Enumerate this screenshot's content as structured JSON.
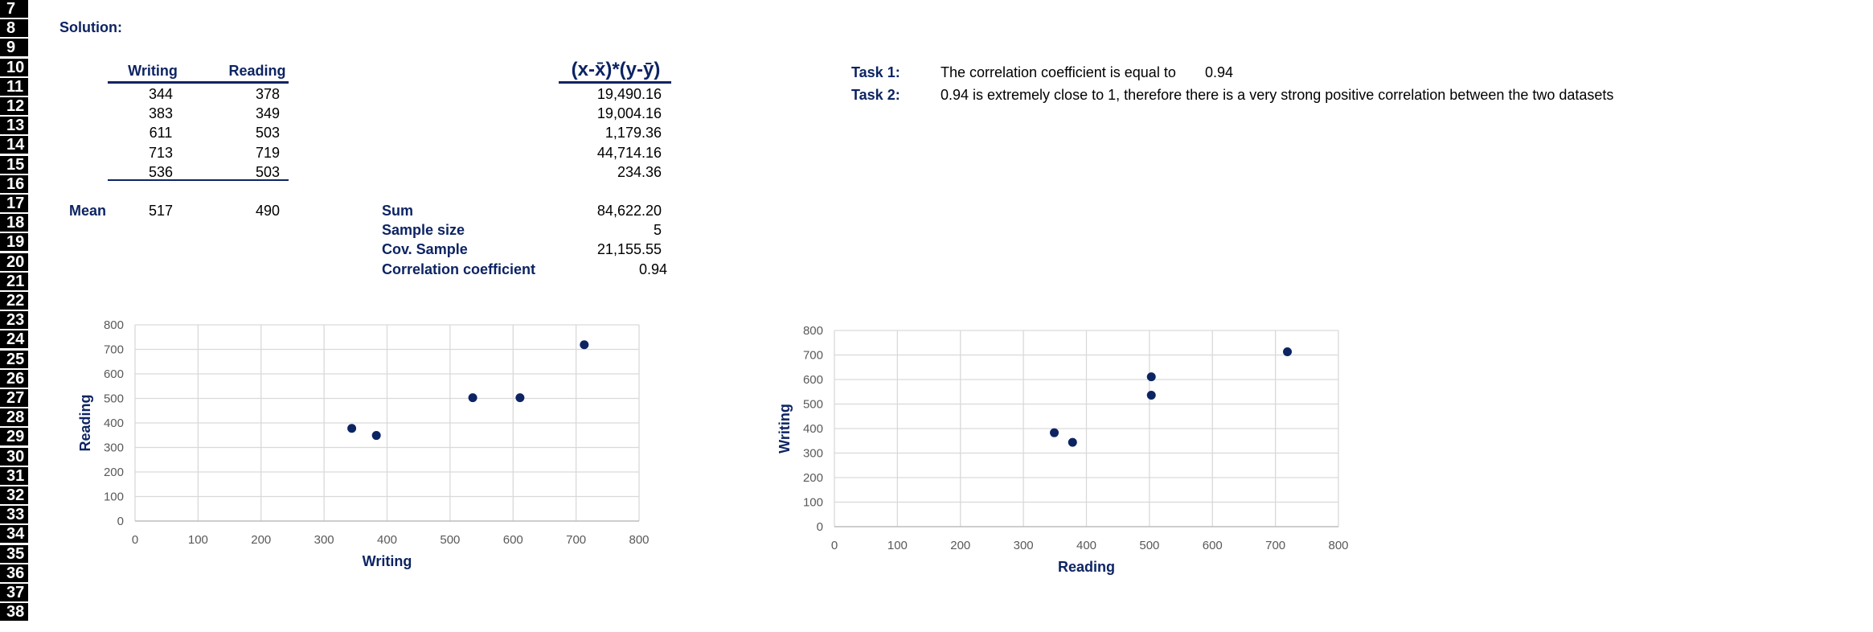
{
  "row_numbers": [
    "7",
    "8",
    "9",
    "10",
    "11",
    "12",
    "13",
    "14",
    "15",
    "16",
    "17",
    "18",
    "19",
    "20",
    "21",
    "22",
    "23",
    "24",
    "25",
    "26",
    "27",
    "28",
    "29",
    "30",
    "31",
    "32",
    "33",
    "34",
    "35",
    "36",
    "37",
    "38"
  ],
  "solution_label": "Solution:",
  "table": {
    "col_writing": "Writing",
    "col_reading": "Reading",
    "col_product": "(x-x̄)*(y-ȳ)",
    "rows": [
      {
        "writing": "344",
        "reading": "378",
        "product": "19,490.16"
      },
      {
        "writing": "383",
        "reading": "349",
        "product": "19,004.16"
      },
      {
        "writing": "611",
        "reading": "503",
        "product": "1,179.36"
      },
      {
        "writing": "713",
        "reading": "719",
        "product": "44,714.16"
      },
      {
        "writing": "536",
        "reading": "503",
        "product": "234.36"
      }
    ],
    "mean_label": "Mean",
    "mean_writing": "517",
    "mean_reading": "490"
  },
  "stats": [
    {
      "label": "Sum",
      "value": "84,622.20"
    },
    {
      "label": "Sample size",
      "value": "5"
    },
    {
      "label": "Cov. Sample",
      "value": "21,155.55"
    },
    {
      "label": "Correlation coefficient",
      "value": "0.94"
    }
  ],
  "tasks": {
    "task1_label": "Task 1:",
    "task1_text": "The correlation coefficient is equal to",
    "task1_value": "0.94",
    "task2_label": "Task 2:",
    "task2_text": "0.94 is extremely close to 1, therefore there is a very strong positive correlation between the two datasets"
  },
  "colors": {
    "navy": "#0d2463",
    "marker": "#0d2463",
    "grid": "#d9d9d9"
  },
  "chart_data": [
    {
      "type": "scatter",
      "xlabel": "Writing",
      "ylabel": "Reading",
      "xlim": [
        0,
        800
      ],
      "ylim": [
        0,
        800
      ],
      "xticks": [
        0,
        100,
        200,
        300,
        400,
        500,
        600,
        700,
        800
      ],
      "yticks": [
        0,
        100,
        200,
        300,
        400,
        500,
        600,
        700,
        800
      ],
      "grid": true,
      "points": [
        {
          "x": 344,
          "y": 378
        },
        {
          "x": 383,
          "y": 349
        },
        {
          "x": 611,
          "y": 503
        },
        {
          "x": 713,
          "y": 719
        },
        {
          "x": 536,
          "y": 503
        }
      ]
    },
    {
      "type": "scatter",
      "xlabel": "Reading",
      "ylabel": "Writing",
      "xlim": [
        0,
        800
      ],
      "ylim": [
        0,
        800
      ],
      "xticks": [
        0,
        100,
        200,
        300,
        400,
        500,
        600,
        700,
        800
      ],
      "yticks": [
        0,
        100,
        200,
        300,
        400,
        500,
        600,
        700,
        800
      ],
      "grid": true,
      "points": [
        {
          "x": 378,
          "y": 344
        },
        {
          "x": 349,
          "y": 383
        },
        {
          "x": 503,
          "y": 611
        },
        {
          "x": 719,
          "y": 713
        },
        {
          "x": 503,
          "y": 536
        }
      ]
    }
  ]
}
